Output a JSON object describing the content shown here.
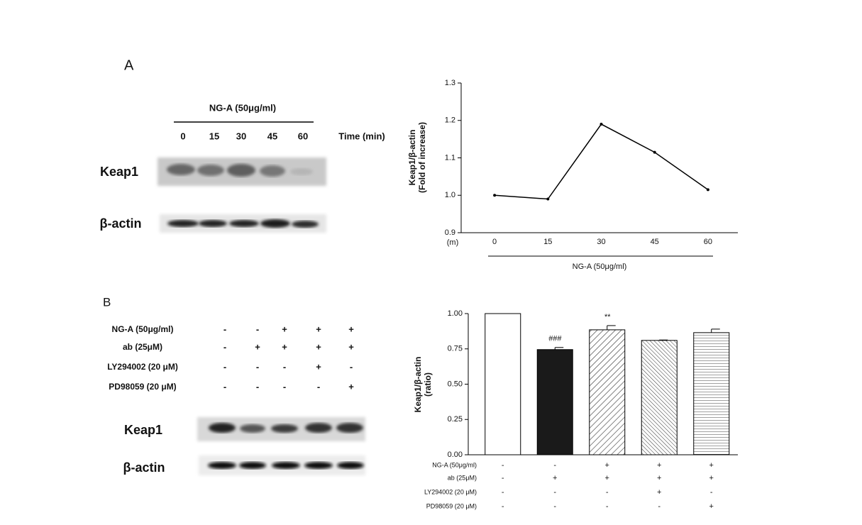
{
  "panel_a": {
    "label": "A",
    "treatment": "NG-A (50μg/ml)",
    "lanes": [
      "0",
      "15",
      "30",
      "45",
      "60"
    ],
    "lane_title": "Time (min)",
    "rows": [
      "Keap1",
      "β-actin"
    ]
  },
  "panel_b": {
    "label": "B",
    "treatments": [
      {
        "name": "NG-A (50μg/ml)",
        "signs": [
          "-",
          "-",
          "+",
          "+",
          "+"
        ]
      },
      {
        "name": "ab (25μM)",
        "signs": [
          "-",
          "+",
          "+",
          "+",
          "+"
        ]
      },
      {
        "name": "LY294002 (20 μM)",
        "signs": [
          "-",
          "-",
          "-",
          "+",
          "-"
        ]
      },
      {
        "name": "PD98059 (20 μM)",
        "signs": [
          "-",
          "-",
          "-",
          "-",
          "+"
        ]
      }
    ],
    "rows": [
      "Keap1",
      "β-actin"
    ]
  },
  "chart_data": [
    {
      "type": "line",
      "ylabel": [
        "Keap1/β-actin",
        "(Fold of increase)"
      ],
      "x_unit": "(m)",
      "xlabel": "NG-A (50μg/ml)",
      "x": [
        0,
        15,
        30,
        45,
        60
      ],
      "values": [
        1.0,
        0.99,
        1.19,
        1.115,
        1.015
      ],
      "color": "#000000",
      "xlim": [
        -9.4,
        68.4
      ],
      "xticks": [
        0,
        15,
        30,
        45,
        60
      ],
      "ylim": [
        0.9,
        1.3
      ],
      "yticks": [
        0.9,
        {
          "value": 1,
          "label": "1.0"
        },
        1.1,
        1.2,
        1.3
      ]
    },
    {
      "type": "bar",
      "ylabel": [
        "Keap1/β-actin",
        "(ratio)"
      ],
      "values": [
        1.0,
        0.745,
        0.885,
        0.81,
        0.865
      ],
      "errors": [
        0,
        0.015,
        0.03,
        0.003,
        0.025
      ],
      "fills": [
        "white",
        "black",
        "hatch-diagonal",
        "hatch-diagonal-dense",
        "hatch-horizontal"
      ],
      "significance": [
        null,
        "###",
        "**",
        null,
        null
      ],
      "ylim": [
        0,
        1
      ],
      "yticks": [
        {
          "value": 0,
          "label": "0.00"
        },
        {
          "value": 0.25,
          "label": "0.25"
        },
        {
          "value": 0.5,
          "label": "0.50"
        },
        {
          "value": 0.75,
          "label": "0.75"
        },
        {
          "value": 1,
          "label": "1.00"
        }
      ],
      "treatments": [
        {
          "name": "NG-A (50μg/ml)",
          "signs": [
            "-",
            "-",
            "+",
            "+",
            "+"
          ]
        },
        {
          "name": "ab (25μM)",
          "signs": [
            "-",
            "+",
            "+",
            "+",
            "+"
          ]
        },
        {
          "name": "LY294002 (20 μM)",
          "signs": [
            "-",
            "-",
            "-",
            "+",
            "-"
          ]
        },
        {
          "name": "PD98059 (20 μM)",
          "signs": [
            "-",
            "-",
            "-",
            "-",
            "+"
          ]
        }
      ]
    }
  ]
}
